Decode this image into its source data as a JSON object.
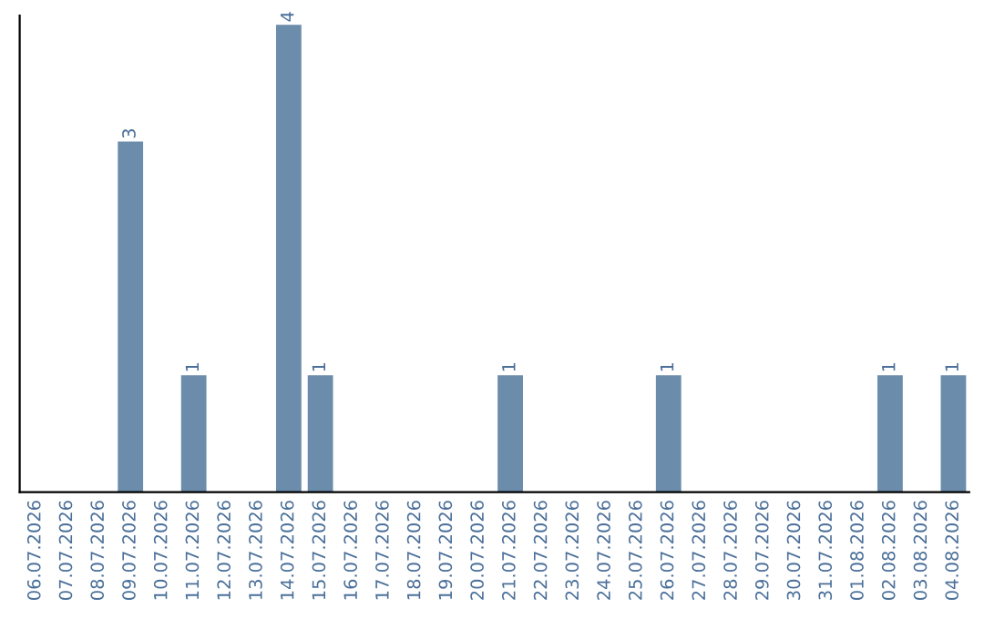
{
  "chart_data": {
    "type": "bar",
    "categories": [
      "06.07.2026",
      "07.07.2026",
      "08.07.2026",
      "09.07.2026",
      "10.07.2026",
      "11.07.2026",
      "12.07.2026",
      "13.07.2026",
      "14.07.2026",
      "15.07.2026",
      "16.07.2026",
      "17.07.2026",
      "18.07.2026",
      "19.07.2026",
      "20.07.2026",
      "21.07.2026",
      "22.07.2026",
      "23.07.2026",
      "24.07.2026",
      "25.07.2026",
      "26.07.2026",
      "27.07.2026",
      "28.07.2026",
      "29.07.2026",
      "30.07.2026",
      "31.07.2026",
      "01.08.2026",
      "02.08.2026",
      "03.08.2026",
      "04.08.2026"
    ],
    "values": [
      0,
      0,
      0,
      3,
      0,
      1,
      0,
      0,
      4,
      1,
      0,
      0,
      0,
      0,
      0,
      1,
      0,
      0,
      0,
      0,
      1,
      0,
      0,
      0,
      0,
      0,
      0,
      1,
      0,
      1
    ],
    "value_labels": [
      null,
      null,
      null,
      "3",
      null,
      "1",
      null,
      null,
      "4",
      "1",
      null,
      null,
      null,
      null,
      null,
      "1",
      null,
      null,
      null,
      null,
      "1",
      null,
      null,
      null,
      null,
      null,
      null,
      "1",
      null,
      "1"
    ],
    "color": "#6b8cab",
    "tick_labels": "x",
    "grid": false,
    "legend": false
  }
}
